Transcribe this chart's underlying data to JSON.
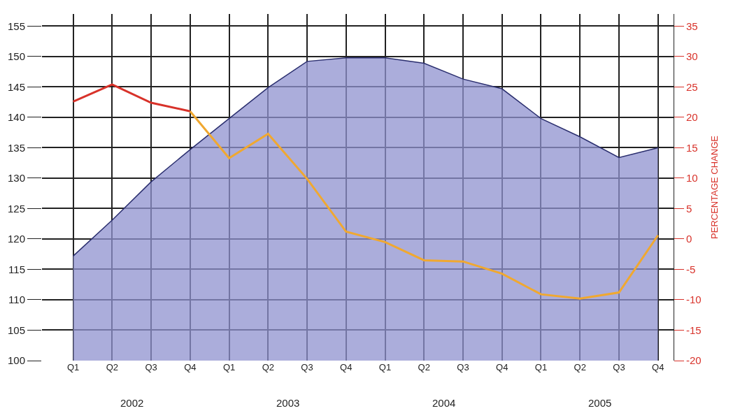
{
  "chart_data": {
    "type": "area",
    "categories": [
      "Q1",
      "Q2",
      "Q3",
      "Q4",
      "Q1",
      "Q2",
      "Q3",
      "Q4",
      "Q1",
      "Q2",
      "Q3",
      "Q4",
      "Q1",
      "Q2",
      "Q3",
      "Q4"
    ],
    "series": [
      {
        "color": "#8f92cf",
        "values": [
          117.2,
          123.1,
          129.4,
          134.7,
          139.8,
          144.9,
          149.2,
          149.8,
          149.8,
          148.9,
          146.3,
          144.7,
          139.8,
          136.8,
          133.4,
          135.0
        ]
      },
      {
        "type": "line",
        "axis": "y2",
        "color": "#d8322a",
        "values": [
          22.6,
          25.4,
          22.4,
          21.0,
          null,
          null,
          null,
          null,
          null,
          null,
          null,
          null,
          null,
          null,
          null,
          null
        ]
      },
      {
        "type": "line",
        "axis": "y2",
        "color": "#f0a830",
        "values": [
          null,
          null,
          null,
          21.0,
          13.3,
          17.3,
          9.9,
          1.2,
          -0.5,
          -3.5,
          -3.7,
          -5.7,
          -9.1,
          -9.8,
          -8.8,
          0.6
        ]
      }
    ],
    "y2label": "PERCENTAGE CHANGE",
    "annotations": [
      "2002",
      "2003",
      "2004",
      "2005"
    ],
    "ylim": [
      100,
      157
    ],
    "yticks": [
      100,
      105,
      110,
      115,
      120,
      125,
      130,
      135,
      140,
      145,
      150,
      155
    ],
    "y2lim": [
      -20,
      37
    ],
    "y2ticks": [
      -20,
      -15,
      -10,
      -5,
      0,
      5,
      10,
      15,
      20,
      25,
      30,
      35
    ],
    "grid": true
  }
}
